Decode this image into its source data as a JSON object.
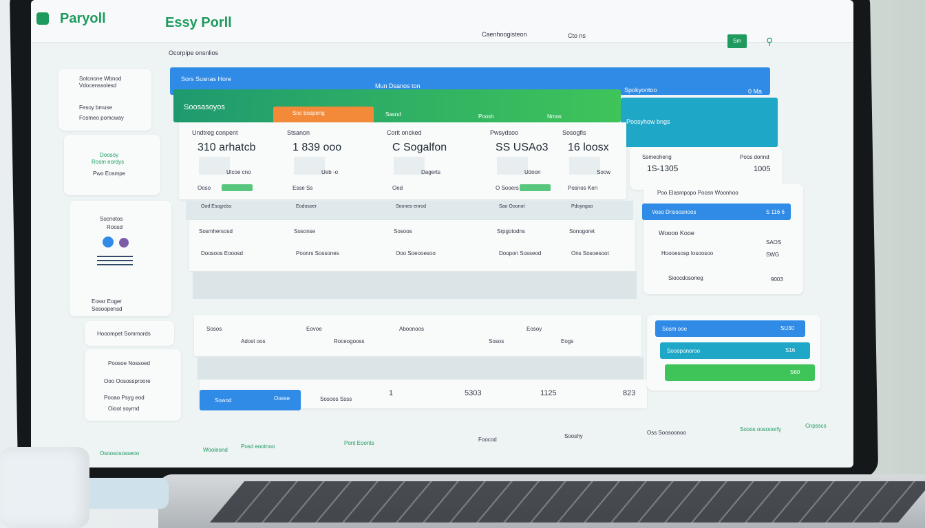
{
  "header": {
    "logo_text": "Paryoll",
    "title": "Essy Porll",
    "nav": [
      "Caenhoogisteon",
      "Cto ns"
    ],
    "action_button": "Sm",
    "user_label": "Sb"
  },
  "page_subtitle": "Ocorpipe onsnlios",
  "sidebar": {
    "card1": {
      "title": "Sotcnone Wbnod",
      "subtitle": "Vdocenssolesd",
      "items": [
        "Fesoy bmuse",
        "Fosmeo pomcway"
      ]
    },
    "card2": {
      "title": "Doosoy",
      "subtitle": "Rosm eordys",
      "text": "Pwo Eosmpe"
    },
    "card3": {
      "title": "Socnotos",
      "subtitle": "Roosd",
      "text": "Eossr Eoger",
      "text2": "Sesoopensd"
    },
    "card4": {
      "title": "Hooompet Sommords"
    },
    "card5": {
      "items": [
        "Poosoe Nossoed",
        "Ooo Oosossproore",
        "Pooao Psyg eod",
        "Oioot soyrnd"
      ]
    }
  },
  "banner": {
    "top_left": "Sors Susnas Hore",
    "top_center": "Mun Dsanos ton",
    "section": "Soosasoyos",
    "tabs": [
      "Soc bospeng",
      "Sasnd",
      "Poosh",
      "Nmos"
    ],
    "right_title": "Spokyontoo",
    "right_value": "0 Ma",
    "right_label": "Poosyhow bngs"
  },
  "stats": [
    {
      "label": "Undtreg conpent",
      "value": "310 arhatcb",
      "sub": "Ulcoe cno",
      "foot": "Ooso"
    },
    {
      "label": "Stsanon",
      "value": "1 839 ooo",
      "sub": "Ueb -o",
      "foot": "Esse Ss"
    },
    {
      "label": "Corit oncked",
      "value": "C Sogalfon",
      "sub": "Dagerts",
      "foot": "Oed"
    },
    {
      "label": "Pwsydsoo",
      "value": "SS USAo3",
      "sub": "Udoon",
      "foot": "O Sooers"
    },
    {
      "label": "Sosogfis",
      "value": "16 loosx",
      "sub": "Soow",
      "foot": "Posnos Ken"
    }
  ],
  "summary": {
    "left_label": "Ssmeoheng",
    "left_value": "1S-1305",
    "right_label": "Poos donnd",
    "right_value": "1005"
  },
  "table_header": [
    "Ood Esogrdss",
    "Eodosoer",
    "Sooneo enrod",
    "Sao Ooonot",
    "Pdoyngoo"
  ],
  "table_rows": [
    [
      "Sosmhersosd",
      "Sosonse",
      "Sosoos",
      "Srpgotodns",
      "Sonogoret"
    ],
    [
      "Doosoos Eooosd",
      "Poonrs Sossones",
      "Ooo Soeooesoo",
      "Doopon Sosseod",
      "Ons Sosoesoot"
    ]
  ],
  "right_panel": {
    "title": "Poo Elasmpopo Poosn Woonhoo",
    "bar_label": "Voso Drisoosnoos",
    "bar_value": "S 116 6",
    "sub_title": "Woooo Kooe",
    "rows": [
      {
        "label": "",
        "value": "SAOS"
      },
      {
        "label": "Hoooesosp Iosoosoo",
        "value": "SWG"
      },
      {
        "label": "Sioocdosorieg",
        "value": "9003"
      }
    ]
  },
  "second_table": {
    "cells": [
      "Sosos",
      "Adost oos",
      "Eovoe",
      "Roceogooss",
      "Aboonoos",
      "Sosos",
      "Eosoy",
      "Eogs"
    ]
  },
  "footer_row": {
    "button": "Sowod",
    "button2": "Oosse",
    "cells": [
      "Sosoos Ssss",
      "1",
      "5303",
      "1125",
      "823"
    ]
  },
  "right_bars": [
    {
      "label": "Sosm ooe",
      "value": "SU30"
    },
    {
      "label": "Soooponoroo",
      "value": "S16"
    },
    {
      "label": "",
      "value": "S60"
    }
  ],
  "footer": {
    "items": [
      "Osoosososseoo",
      "Wooleond",
      "Posd eootnoo",
      "Pont Eoonts",
      "Foocod",
      "Sooshy",
      "Oss Soosoonoo",
      "Sooos oosooorfy",
      "Cnpsscs"
    ]
  },
  "colors": {
    "green": "#1e9a5e",
    "blue": "#2f8be6",
    "orange": "#f28a3a",
    "teal": "#1fa7c8",
    "lime": "#3fc45a"
  }
}
